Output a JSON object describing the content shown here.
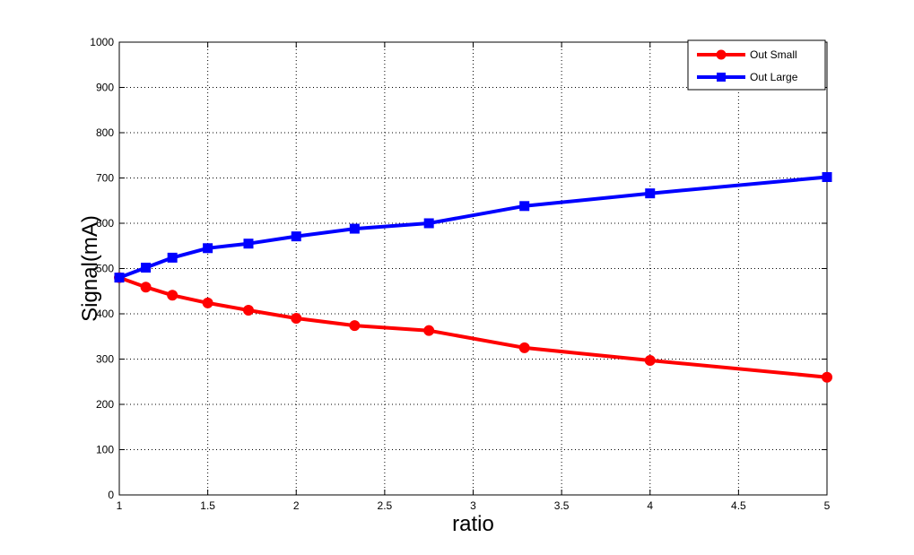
{
  "chart_data": {
    "type": "line",
    "title": "",
    "xlabel": "ratio",
    "ylabel": "Signal(mA)",
    "xlim": [
      1,
      5
    ],
    "ylim": [
      0,
      1000
    ],
    "xticks": [
      1,
      1.5,
      2,
      2.5,
      3,
      3.5,
      4,
      4.5,
      5
    ],
    "xtick_labels": [
      "1",
      "1.5",
      "2",
      "2.5",
      "3",
      "3.5",
      "4",
      "4.5",
      "5"
    ],
    "yticks": [
      0,
      100,
      200,
      300,
      400,
      500,
      600,
      700,
      800,
      900,
      1000
    ],
    "ytick_labels": [
      "0",
      "100",
      "200",
      "300",
      "400",
      "500",
      "600",
      "700",
      "800",
      "900",
      "1000"
    ],
    "grid": true,
    "legend_position": "top-right",
    "x": [
      1,
      1.15,
      1.3,
      1.5,
      1.73,
      2,
      2.33,
      2.75,
      3.29,
      4,
      5
    ],
    "series": [
      {
        "name": "Out Small",
        "color": "#ff0000",
        "marker": "circle",
        "values": [
          480,
          459,
          441,
          424,
          408,
          390,
          374,
          363,
          325,
          297,
          260
        ]
      },
      {
        "name": "Out Large",
        "color": "#0000ff",
        "marker": "square",
        "values": [
          480,
          502,
          524,
          545,
          555,
          571,
          588,
          600,
          638,
          666,
          702
        ]
      }
    ]
  }
}
